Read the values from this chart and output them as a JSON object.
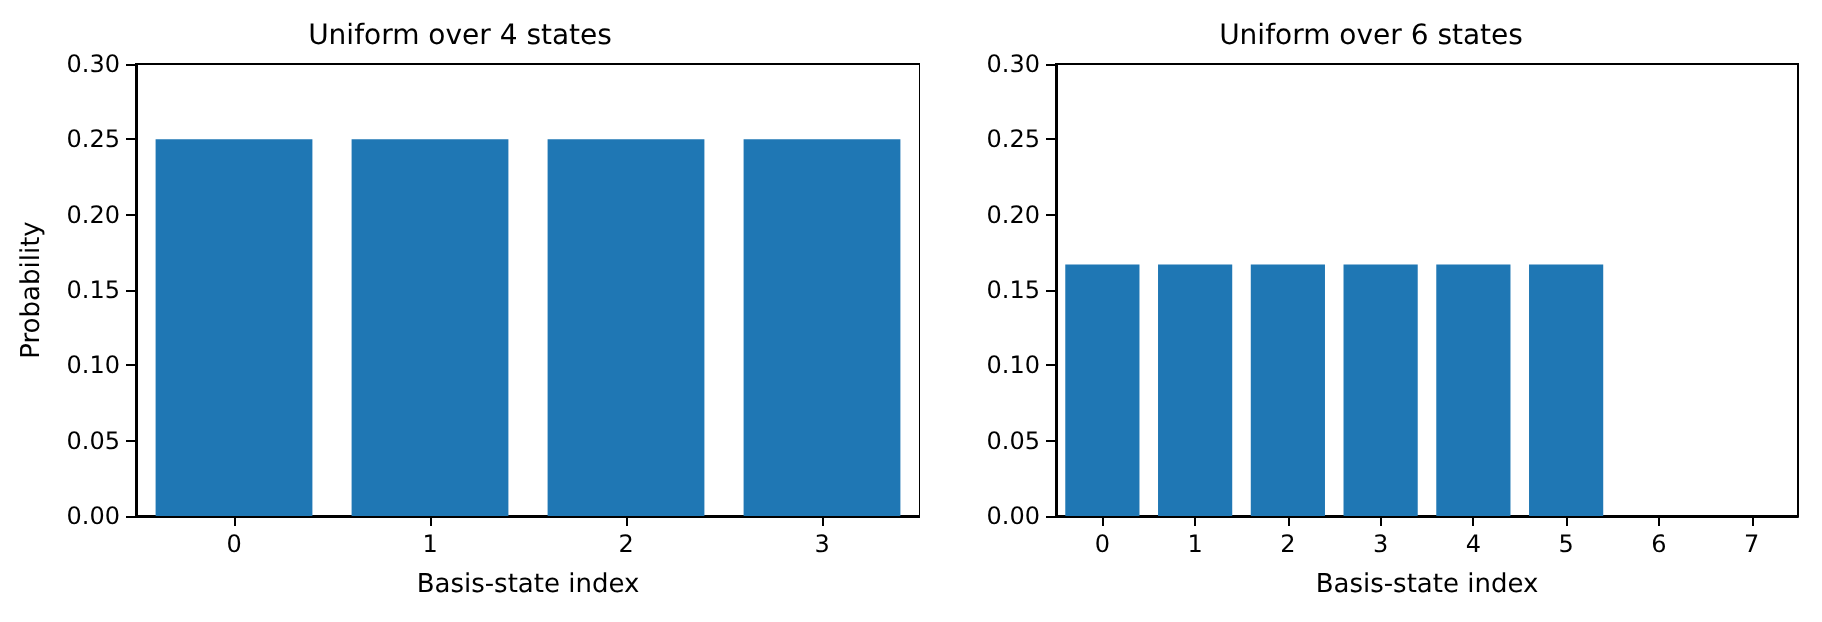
{
  "chart_data": [
    {
      "type": "bar",
      "title": "Uniform over 4 states",
      "xlabel": "Basis-state index",
      "ylabel": "Probability",
      "categories": [
        "0",
        "1",
        "2",
        "3"
      ],
      "values": [
        0.25,
        0.25,
        0.25,
        0.25
      ],
      "color": "#1f77b4",
      "ylim": [
        0,
        0.3
      ],
      "yticks": [
        {
          "value": 0,
          "label": "0.00"
        },
        {
          "value": 0.05,
          "label": "0.05"
        },
        {
          "value": 0.1,
          "label": "0.10"
        },
        {
          "value": 0.15,
          "label": "0.15"
        },
        {
          "value": 0.2,
          "label": "0.20"
        },
        {
          "value": 0.25,
          "label": "0.25"
        },
        {
          "value": 0.3,
          "label": "0.30"
        }
      ],
      "grid": false
    },
    {
      "type": "bar",
      "title": "Uniform over 6 states",
      "xlabel": "Basis-state index",
      "categories": [
        "0",
        "1",
        "2",
        "3",
        "4",
        "5",
        "6",
        "7"
      ],
      "values": [
        0.167,
        0.167,
        0.167,
        0.167,
        0.167,
        0.167,
        0,
        0
      ],
      "color": "#1f77b4",
      "ylim": [
        0,
        0.3
      ],
      "yticks": [
        {
          "value": 0,
          "label": "0.00"
        },
        {
          "value": 0.05,
          "label": "0.05"
        },
        {
          "value": 0.1,
          "label": "0.10"
        },
        {
          "value": 0.15,
          "label": "0.15"
        },
        {
          "value": 0.2,
          "label": "0.20"
        },
        {
          "value": 0.25,
          "label": "0.25"
        },
        {
          "value": 0.3,
          "label": "0.30"
        }
      ],
      "grid": false
    }
  ]
}
